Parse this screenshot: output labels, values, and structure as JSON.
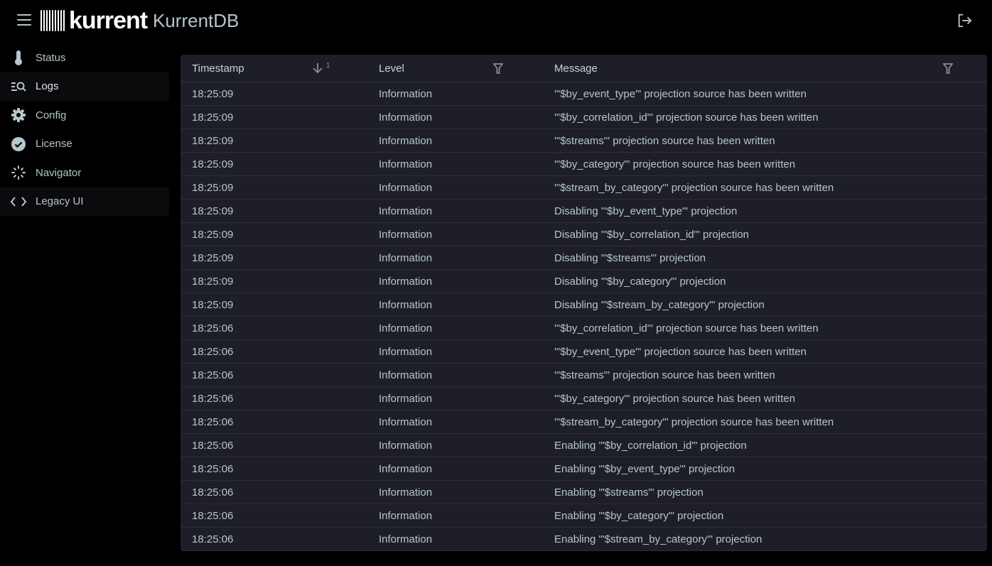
{
  "header": {
    "brand": "kurrent",
    "product": "KurrentDB",
    "menu_icon": "hamburger-icon",
    "logout_icon": "logout-icon"
  },
  "sidebar": {
    "items": [
      {
        "label": "Status",
        "icon": "thermometer-icon"
      },
      {
        "label": "Logs",
        "icon": "search-list-icon",
        "active": true
      },
      {
        "label": "Config",
        "icon": "gear-icon"
      },
      {
        "label": "License",
        "icon": "verified-badge-icon"
      },
      {
        "label": "Navigator",
        "icon": "sparkle-dots-icon"
      },
      {
        "label": "Legacy UI",
        "icon": "code-icon"
      }
    ]
  },
  "table": {
    "columns": [
      {
        "label": "Timestamp",
        "sort": "descending",
        "sort_order": "1"
      },
      {
        "label": "Level",
        "filter": true
      },
      {
        "label": "Message",
        "filter": true
      }
    ],
    "rows": [
      [
        "18:25:09",
        "Information",
        "'\"$by_event_type\"' projection source has been written"
      ],
      [
        "18:25:09",
        "Information",
        "'\"$by_correlation_id\"' projection source has been written"
      ],
      [
        "18:25:09",
        "Information",
        "'\"$streams\"' projection source has been written"
      ],
      [
        "18:25:09",
        "Information",
        "'\"$by_category\"' projection source has been written"
      ],
      [
        "18:25:09",
        "Information",
        "'\"$stream_by_category\"' projection source has been written"
      ],
      [
        "18:25:09",
        "Information",
        "Disabling '\"$by_event_type\"' projection"
      ],
      [
        "18:25:09",
        "Information",
        "Disabling '\"$by_correlation_id\"' projection"
      ],
      [
        "18:25:09",
        "Information",
        "Disabling '\"$streams\"' projection"
      ],
      [
        "18:25:09",
        "Information",
        "Disabling '\"$by_category\"' projection"
      ],
      [
        "18:25:09",
        "Information",
        "Disabling '\"$stream_by_category\"' projection"
      ],
      [
        "18:25:06",
        "Information",
        "'\"$by_correlation_id\"' projection source has been written"
      ],
      [
        "18:25:06",
        "Information",
        "'\"$by_event_type\"' projection source has been written"
      ],
      [
        "18:25:06",
        "Information",
        "'\"$streams\"' projection source has been written"
      ],
      [
        "18:25:06",
        "Information",
        "'\"$by_category\"' projection source has been written"
      ],
      [
        "18:25:06",
        "Information",
        "'\"$stream_by_category\"' projection source has been written"
      ],
      [
        "18:25:06",
        "Information",
        "Enabling '\"$by_correlation_id\"' projection"
      ],
      [
        "18:25:06",
        "Information",
        "Enabling '\"$by_event_type\"' projection"
      ],
      [
        "18:25:06",
        "Information",
        "Enabling '\"$streams\"' projection"
      ],
      [
        "18:25:06",
        "Information",
        "Enabling '\"$by_category\"' projection"
      ],
      [
        "18:25:06",
        "Information",
        "Enabling '\"$stream_by_category\"' projection"
      ]
    ]
  }
}
